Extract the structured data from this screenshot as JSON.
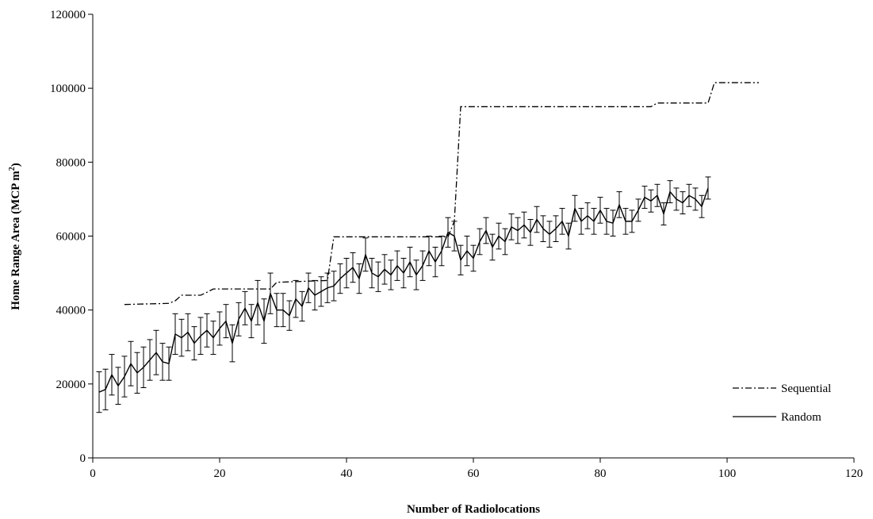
{
  "chart_data": {
    "type": "line",
    "title": "",
    "xlabel": "Number of Radiolocations",
    "ylabel": "Home Range Area (MCP m²)",
    "ylabel_parts": [
      "Home Range Area (MCP m",
      "2",
      ")"
    ],
    "xlim": [
      0,
      120
    ],
    "ylim": [
      0,
      120000
    ],
    "xticks": [
      0,
      20,
      40,
      60,
      80,
      100,
      120
    ],
    "yticks": [
      0,
      20000,
      40000,
      60000,
      80000,
      100000,
      120000
    ],
    "xtick_labels": [
      "0",
      "20",
      "40",
      "60",
      "80",
      "100",
      "120"
    ],
    "ytick_labels": [
      "0",
      "20000",
      "40000",
      "60000",
      "80000",
      "100000",
      "120000"
    ],
    "grid": false,
    "legend_position": "right",
    "series": [
      {
        "name": "Sequential",
        "style": "dash-dot",
        "x": [
          5,
          12,
          13,
          14,
          17,
          18,
          19,
          28,
          29,
          37,
          38,
          56,
          57,
          58,
          88,
          89,
          97,
          98,
          105
        ],
        "y": [
          41500,
          41800,
          42500,
          44000,
          44000,
          44800,
          45700,
          45700,
          47500,
          48000,
          59800,
          59800,
          64000,
          95000,
          95000,
          96000,
          96000,
          101500,
          101500
        ]
      },
      {
        "name": "Random",
        "style": "solid",
        "x": [
          1,
          2,
          3,
          4,
          5,
          6,
          7,
          8,
          9,
          10,
          11,
          12,
          13,
          14,
          15,
          16,
          17,
          18,
          19,
          20,
          21,
          22,
          23,
          24,
          25,
          26,
          27,
          28,
          29,
          30,
          31,
          32,
          33,
          34,
          35,
          36,
          37,
          38,
          39,
          40,
          41,
          42,
          43,
          44,
          45,
          46,
          47,
          48,
          49,
          50,
          51,
          52,
          53,
          54,
          55,
          56,
          57,
          58,
          59,
          60,
          61,
          62,
          63,
          64,
          65,
          66,
          67,
          68,
          69,
          70,
          71,
          72,
          73,
          74,
          75,
          76,
          77,
          78,
          79,
          80,
          81,
          82,
          83,
          84,
          85,
          86,
          87,
          88,
          89,
          90,
          91,
          92,
          93,
          94,
          95,
          96,
          97
        ],
        "y": [
          17800,
          18500,
          22500,
          19500,
          22000,
          25500,
          23000,
          24500,
          26500,
          28500,
          26000,
          25500,
          33500,
          32500,
          34000,
          31000,
          33000,
          34500,
          32500,
          35000,
          37000,
          31000,
          37500,
          40500,
          37000,
          42000,
          37000,
          44500,
          40000,
          40000,
          38500,
          43000,
          41000,
          46000,
          44000,
          45000,
          46000,
          46500,
          48500,
          50000,
          51500,
          48500,
          55000,
          50000,
          49000,
          51000,
          49500,
          52000,
          50000,
          53000,
          49500,
          52000,
          56000,
          53000,
          56000,
          61000,
          60000,
          53500,
          56000,
          54000,
          58500,
          61500,
          57000,
          60000,
          58500,
          62500,
          61500,
          63000,
          61000,
          64500,
          62000,
          60500,
          62000,
          64000,
          60000,
          67500,
          64000,
          65500,
          64000,
          67000,
          64000,
          63500,
          68500,
          64000,
          64000,
          67000,
          70500,
          69500,
          71000,
          66000,
          72000,
          70000,
          69000,
          71000,
          70000,
          68000,
          73000
        ],
        "err": [
          5500,
          5500,
          5500,
          5000,
          5500,
          6000,
          5500,
          5500,
          5500,
          6000,
          5000,
          4500,
          5500,
          5000,
          5000,
          4500,
          5000,
          4500,
          4500,
          4500,
          4500,
          5000,
          4500,
          4500,
          4500,
          6000,
          6000,
          5500,
          4500,
          4500,
          4000,
          5000,
          4000,
          4000,
          4000,
          4000,
          4000,
          4000,
          4000,
          4000,
          4000,
          4000,
          4500,
          4000,
          4000,
          4000,
          4000,
          4000,
          4000,
          4000,
          4000,
          4000,
          4000,
          4000,
          4000,
          4000,
          4000,
          4000,
          4000,
          3500,
          3500,
          3500,
          3500,
          3500,
          3500,
          3500,
          3500,
          3500,
          3500,
          3500,
          3500,
          3500,
          3500,
          3500,
          3500,
          3500,
          3500,
          3500,
          3500,
          3500,
          3500,
          3500,
          3500,
          3500,
          3000,
          3000,
          3000,
          3000,
          3000,
          3000,
          3000,
          3000,
          3000,
          3000,
          3000,
          3000,
          3000
        ]
      }
    ]
  }
}
